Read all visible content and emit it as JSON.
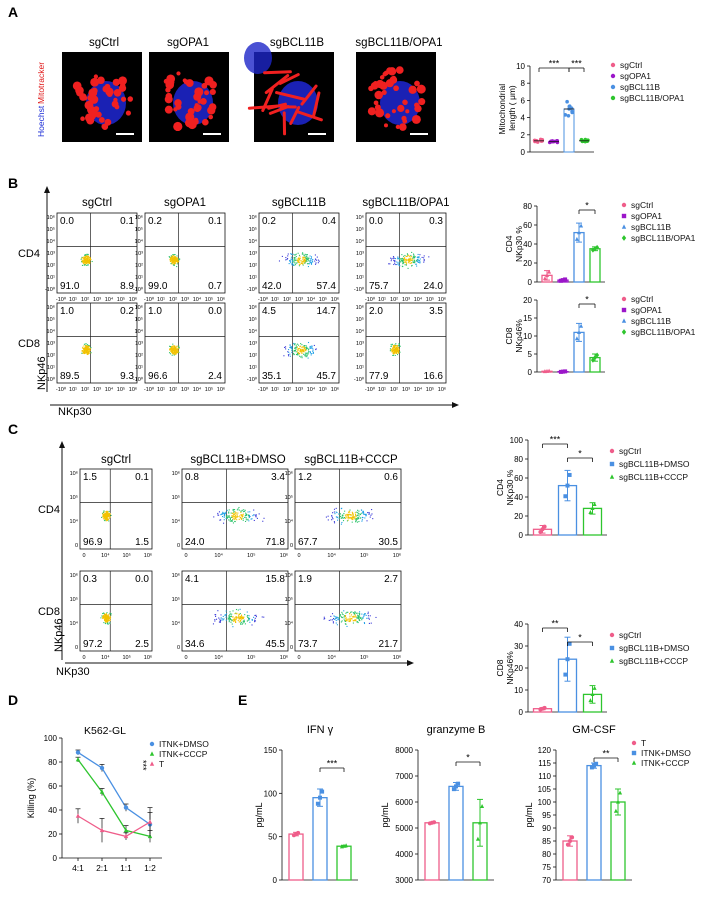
{
  "panels": {
    "A": {
      "letter": "A",
      "conditions": [
        "sgCtrl",
        "sgOPA1",
        "sgBCL11B",
        "sgBCL11B/OPA1"
      ],
      "stain_labels": [
        "Hoechst",
        "Mitotracker"
      ],
      "stain_colors": [
        "#1a2bd6",
        "#e01818"
      ],
      "chart_ylabel": "Mitochondrial length ( μm)",
      "legend": [
        "sgCtrl",
        "sgOPA1",
        "sgBCL11B",
        "sgBCL11B/OPA1"
      ],
      "sig": [
        "***",
        "***"
      ]
    },
    "B": {
      "letter": "B",
      "conditions": [
        "sgCtrl",
        "sgOPA1",
        "sgBCL11B",
        "sgBCL11B/OPA1"
      ],
      "row_labels": [
        "CD4",
        "CD8"
      ],
      "y_axis_label": "NKp46",
      "x_axis_label": "NKp30",
      "quadrants": [
        [
          [
            "0.0",
            "0.1",
            "91.0",
            "8.9"
          ],
          [
            "0.2",
            "0.1",
            "99.0",
            "0.7"
          ],
          [
            "0.2",
            "0.4",
            "42.0",
            "57.4"
          ],
          [
            "0.0",
            "0.3",
            "75.7",
            "24.0"
          ]
        ],
        [
          [
            "1.0",
            "0.2",
            "89.5",
            "9.3"
          ],
          [
            "1.0",
            "0.0",
            "96.6",
            "2.4"
          ],
          [
            "4.5",
            "14.7",
            "35.1",
            "45.7"
          ],
          [
            "2.0",
            "3.5",
            "77.9",
            "16.6"
          ]
        ]
      ],
      "tick_labels": [
        "-10⁰",
        "10¹",
        "10²",
        "10³",
        "10⁴",
        "10⁵",
        "10⁶"
      ],
      "legend": [
        "sgCtrl",
        "sgOPA1",
        "sgBCL11B",
        "sgBCL11B/OPA1"
      ],
      "bar_ylabels": [
        [
          "CD4",
          "NKp30 %"
        ],
        [
          "CD8",
          "NKp46%"
        ]
      ],
      "bar_sig": "*"
    },
    "C": {
      "letter": "C",
      "conditions": [
        "sgCtrl",
        "sgBCL11B+DMSO",
        "sgBCL11B+CCCP"
      ],
      "row_labels": [
        "CD4",
        "CD8"
      ],
      "y_axis_label": "NKp46",
      "x_axis_label": "NKp30",
      "quadrants": [
        [
          [
            "1.5",
            "0.1",
            "96.9",
            "1.5"
          ],
          [
            "0.8",
            "3.4",
            "24.0",
            "71.8"
          ],
          [
            "1.2",
            "0.6",
            "67.7",
            "30.5"
          ]
        ],
        [
          [
            "0.3",
            "0.0",
            "97.2",
            "2.5"
          ],
          [
            "4.1",
            "15.8",
            "34.6",
            "45.5"
          ],
          [
            "1.9",
            "2.7",
            "73.7",
            "21.7"
          ]
        ]
      ],
      "tick_labels": [
        "0",
        "10⁴",
        "10⁵",
        "10⁶"
      ],
      "legend": [
        "sgCtrl",
        "sgBCL11B+DMSO",
        "sgBCL11B+CCCP"
      ],
      "bar_ylabels": [
        [
          "CD4",
          "NKp30 %"
        ],
        [
          "CD8",
          "NKp46%"
        ]
      ],
      "sig_top": [
        "***",
        "*"
      ],
      "sig_bottom": [
        "**",
        "*"
      ]
    },
    "D": {
      "letter": "D",
      "ylabel": "Killing (%)",
      "sig": "***",
      "legend": [
        "ITNK+DMSO",
        "ITNK+CCCP",
        "T"
      ]
    },
    "E": {
      "letter": "E",
      "ylabel": "pg/mL",
      "legend": [
        "T",
        "ITNK+DMSO",
        "ITNK+CCCP"
      ],
      "sig": [
        "***",
        "*",
        "**"
      ]
    }
  },
  "colors": {
    "pink": "#ef5d8a",
    "purple": "#9b16c9",
    "blue": "#4a90e2",
    "green": "#2ec52e",
    "black": "#111111"
  },
  "chart_data": [
    {
      "type": "scatter",
      "panel": "A",
      "categories": [
        "sgCtrl",
        "sgOPA1",
        "sgBCL11B",
        "sgBCL11B/OPA1"
      ],
      "values": [
        1.3,
        1.2,
        5.0,
        1.3
      ],
      "errors": [
        0.2,
        0.2,
        1.2,
        0.2
      ],
      "ylabel": "Mitochondrial length ( μm)",
      "ylim": [
        0,
        10
      ],
      "yticks": [
        0,
        2,
        4,
        6,
        8,
        10
      ]
    },
    {
      "type": "bar",
      "panel": "B-top",
      "categories": [
        "sgCtrl",
        "sgOPA1",
        "sgBCL11B",
        "sgBCL11B/OPA1"
      ],
      "values": [
        7,
        2,
        52,
        35
      ],
      "errors": [
        5,
        1,
        10,
        2
      ],
      "ylabel": "CD4 NKp30 %",
      "ylim": [
        0,
        80
      ],
      "yticks": [
        0,
        20,
        40,
        60,
        80
      ]
    },
    {
      "type": "bar",
      "panel": "B-bottom",
      "categories": [
        "sgCtrl",
        "sgOPA1",
        "sgBCL11B",
        "sgBCL11B/OPA1"
      ],
      "values": [
        0.2,
        0.1,
        11,
        4
      ],
      "errors": [
        0.1,
        0.1,
        2.5,
        1
      ],
      "ylabel": "CD8 NKp46%",
      "ylim": [
        0,
        20
      ],
      "yticks": [
        0,
        5,
        10,
        15,
        20
      ]
    },
    {
      "type": "bar",
      "panel": "C-top",
      "categories": [
        "sgCtrl",
        "sgBCL11B+DMSO",
        "sgBCL11B+CCCP"
      ],
      "values": [
        6,
        52,
        28
      ],
      "errors": [
        4,
        16,
        6
      ],
      "ylabel": "CD4 NKp30 %",
      "ylim": [
        0,
        100
      ],
      "yticks": [
        0,
        20,
        40,
        60,
        80,
        100
      ]
    },
    {
      "type": "bar",
      "panel": "C-bottom",
      "categories": [
        "sgCtrl",
        "sgBCL11B+DMSO",
        "sgBCL11B+CCCP"
      ],
      "values": [
        1.5,
        24,
        8
      ],
      "errors": [
        0.5,
        10,
        4
      ],
      "ylabel": "CD8 NKp46%",
      "ylim": [
        0,
        40
      ],
      "yticks": [
        0,
        10,
        20,
        30,
        40
      ]
    },
    {
      "type": "line",
      "panel": "D",
      "title": "K562-GL",
      "x": [
        "4:1",
        "2:1",
        "1:1",
        "1:2"
      ],
      "series": [
        {
          "name": "ITNK+DMSO",
          "values": [
            88,
            75,
            42,
            28
          ],
          "errors": [
            2,
            3,
            3,
            10
          ]
        },
        {
          "name": "ITNK+CCCP",
          "values": [
            82,
            55,
            23,
            18
          ],
          "errors": [
            2,
            3,
            4,
            5
          ]
        },
        {
          "name": "T",
          "values": [
            35,
            23,
            18,
            30
          ],
          "errors": [
            6,
            10,
            3,
            12
          ]
        }
      ],
      "ylabel": "Killing (%)",
      "ylim": [
        0,
        100
      ],
      "yticks": [
        0,
        20,
        40,
        60,
        80,
        100
      ]
    },
    {
      "type": "bar",
      "panel": "E1",
      "title": "IFN γ",
      "categories": [
        "T",
        "ITNK+DMSO",
        "ITNK+CCCP"
      ],
      "values": [
        53,
        95,
        39
      ],
      "errors": [
        2,
        10,
        1
      ],
      "ylabel": "pg/mL",
      "ylim": [
        0,
        150
      ],
      "yticks": [
        0,
        50,
        100,
        150
      ]
    },
    {
      "type": "bar",
      "panel": "E2",
      "title": "granzyme B",
      "categories": [
        "T",
        "ITNK+DMSO",
        "ITNK+CCCP"
      ],
      "values": [
        5200,
        6600,
        5200
      ],
      "errors": [
        30,
        150,
        900
      ],
      "ylabel": "pg/mL",
      "ylim": [
        3000,
        8000
      ],
      "yticks": [
        3000,
        4000,
        5000,
        6000,
        7000,
        8000
      ]
    },
    {
      "type": "bar",
      "panel": "E3",
      "title": "GM-CSF",
      "categories": [
        "T",
        "ITNK+DMSO",
        "ITNK+CCCP"
      ],
      "values": [
        85,
        114,
        100
      ],
      "errors": [
        2,
        1,
        5
      ],
      "ylabel": "pg/mL",
      "ylim": [
        70,
        120
      ],
      "yticks": [
        70,
        75,
        80,
        85,
        90,
        95,
        100,
        105,
        110,
        115,
        120
      ]
    }
  ]
}
